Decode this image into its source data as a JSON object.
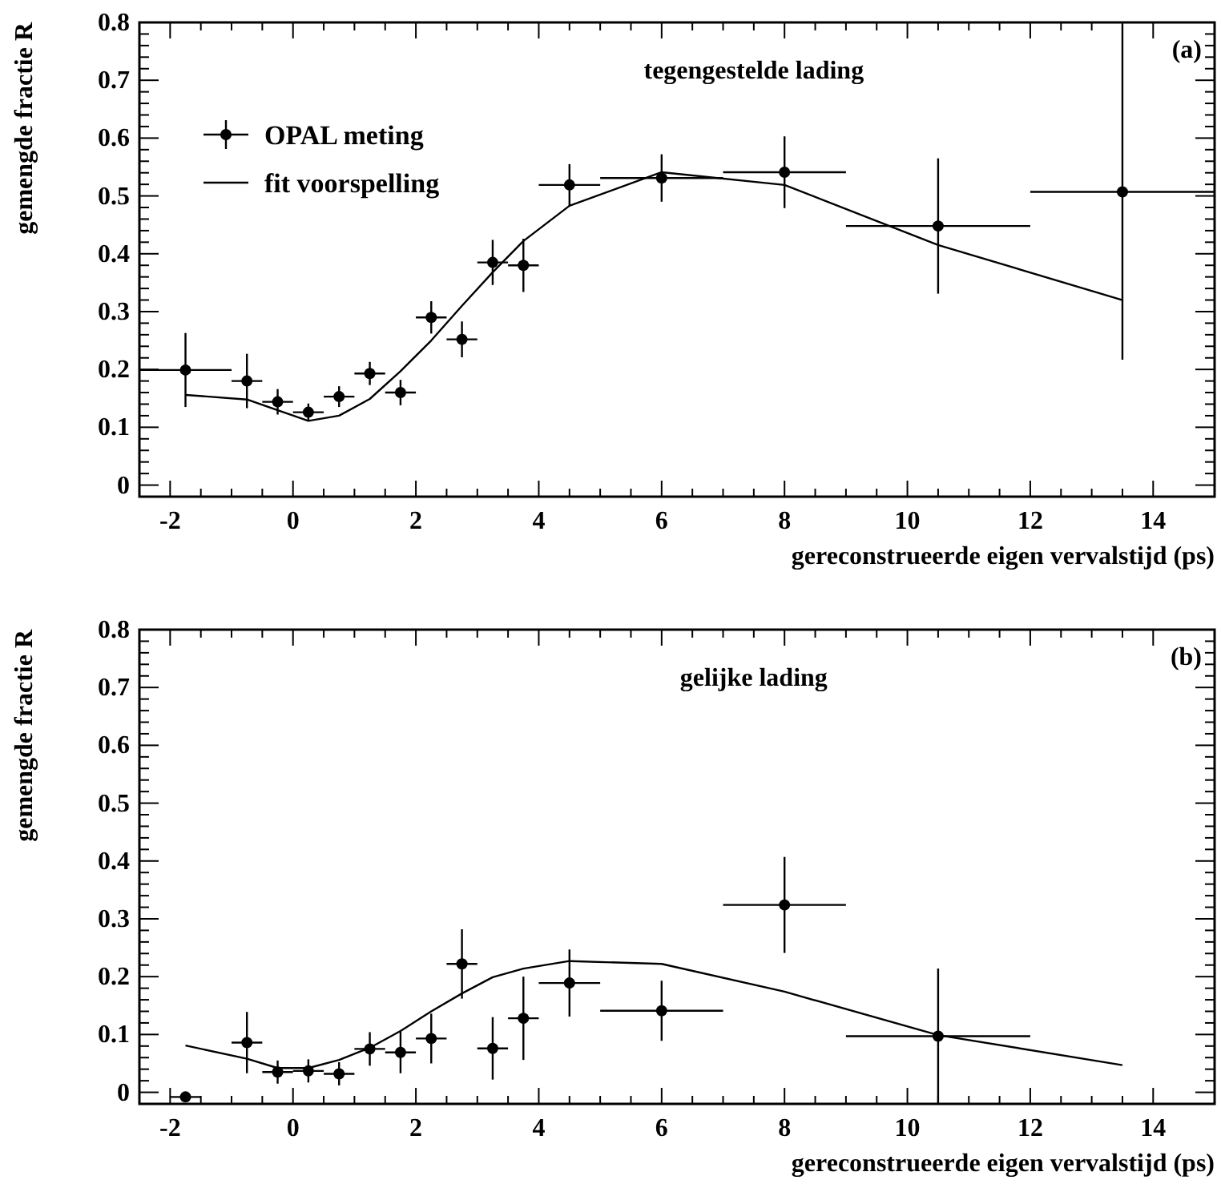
{
  "chart_data": [
    {
      "type": "scatter",
      "xlabel": "gereconstrueerde eigen vervalstijd (ps)",
      "ylabel": "gemengde fractie R",
      "annotations": [
        "tegengestelde lading",
        "(a)"
      ],
      "xlim": [
        -2.5,
        15
      ],
      "xticks": [
        -2,
        0,
        2,
        4,
        6,
        8,
        10,
        12,
        14
      ],
      "ylim": [
        -0.02,
        0.8
      ],
      "yticks": [
        0,
        0.1,
        0.2,
        0.3,
        0.4,
        0.5,
        0.6,
        0.7,
        0.8
      ],
      "grid": false,
      "legend": "top left",
      "line_style": "solid",
      "series": [
        {
          "name": "OPAL meting",
          "marker": "circle",
          "color": "#000000",
          "x": [
            -1.75,
            -0.75,
            -0.25,
            0.25,
            0.75,
            1.25,
            1.75,
            2.25,
            2.75,
            3.25,
            3.75,
            4.5,
            6,
            8,
            10.5,
            13.5
          ],
          "values": [
            0.199,
            0.18,
            0.144,
            0.126,
            0.153,
            0.193,
            0.16,
            0.29,
            0.252,
            0.385,
            0.38,
            0.519,
            0.531,
            0.541,
            0.448,
            0.507
          ],
          "errors": [
            0.064,
            0.047,
            0.022,
            0.015,
            0.018,
            0.02,
            0.022,
            0.028,
            0.031,
            0.039,
            0.046,
            0.036,
            0.041,
            0.062,
            0.117,
            0.29
          ],
          "xerrors": [
            0.75,
            0.25,
            0.25,
            0.25,
            0.25,
            0.25,
            0.25,
            0.25,
            0.25,
            0.25,
            0.25,
            0.5,
            1,
            1,
            1.5,
            1.5
          ]
        },
        {
          "name": "fit voorspelling",
          "type": "line",
          "marker": "none",
          "color": "#000000",
          "x": [
            -1.75,
            -0.75,
            0.25,
            0.75,
            1.25,
            1.75,
            2.25,
            2.75,
            3.25,
            3.75,
            4.5,
            6,
            8,
            10.5,
            13.5
          ],
          "values": [
            0.156,
            0.148,
            0.111,
            0.12,
            0.149,
            0.197,
            0.25,
            0.31,
            0.368,
            0.422,
            0.483,
            0.541,
            0.519,
            0.415,
            0.32
          ]
        }
      ]
    },
    {
      "type": "scatter",
      "xlabel": "gereconstrueerde eigen vervalstijd (ps)",
      "ylabel": "gemengde fractie R",
      "annotations": [
        "gelijke lading",
        "(b)"
      ],
      "xlim": [
        -2.5,
        15
      ],
      "xticks": [
        -2,
        0,
        2,
        4,
        6,
        8,
        10,
        12,
        14
      ],
      "ylim": [
        -0.02,
        0.8
      ],
      "yticks": [
        0,
        0.1,
        0.2,
        0.3,
        0.4,
        0.5,
        0.6,
        0.7,
        0.8
      ],
      "grid": false,
      "legend": false,
      "line_style": "solid",
      "series": [
        {
          "marker": "circle",
          "color": "#000000",
          "x": [
            -1.75,
            -0.75,
            -0.25,
            0.25,
            0.75,
            1.25,
            1.75,
            2.25,
            2.75,
            3.25,
            3.75,
            4.5,
            6,
            8,
            10.5
          ],
          "values": [
            -0.008,
            0.086,
            0.035,
            0.037,
            0.032,
            0.075,
            0.069,
            0.093,
            0.222,
            0.076,
            0.128,
            0.189,
            0.141,
            0.324,
            0.097
          ],
          "errors": [
            null,
            0.053,
            0.02,
            0.02,
            0.02,
            0.029,
            0.036,
            0.043,
            0.06,
            0.054,
            0.072,
            0.058,
            0.052,
            0.083,
            0.117
          ],
          "xerrors": [
            0.25,
            0.25,
            0.25,
            0.25,
            0.25,
            0.25,
            0.25,
            0.25,
            0.25,
            0.25,
            0.25,
            0.5,
            1,
            1,
            1.5
          ]
        },
        {
          "type": "line",
          "marker": "none",
          "color": "#000000",
          "x": [
            -1.75,
            -0.75,
            -0.25,
            0.25,
            0.75,
            1.25,
            1.75,
            2.25,
            2.75,
            3.25,
            3.75,
            4.5,
            6,
            8,
            10.5,
            13.5
          ],
          "values": [
            0.081,
            0.058,
            0.042,
            0.042,
            0.056,
            0.077,
            0.106,
            0.14,
            0.171,
            0.199,
            0.214,
            0.227,
            0.222,
            0.174,
            0.099,
            0.047
          ]
        }
      ]
    }
  ]
}
